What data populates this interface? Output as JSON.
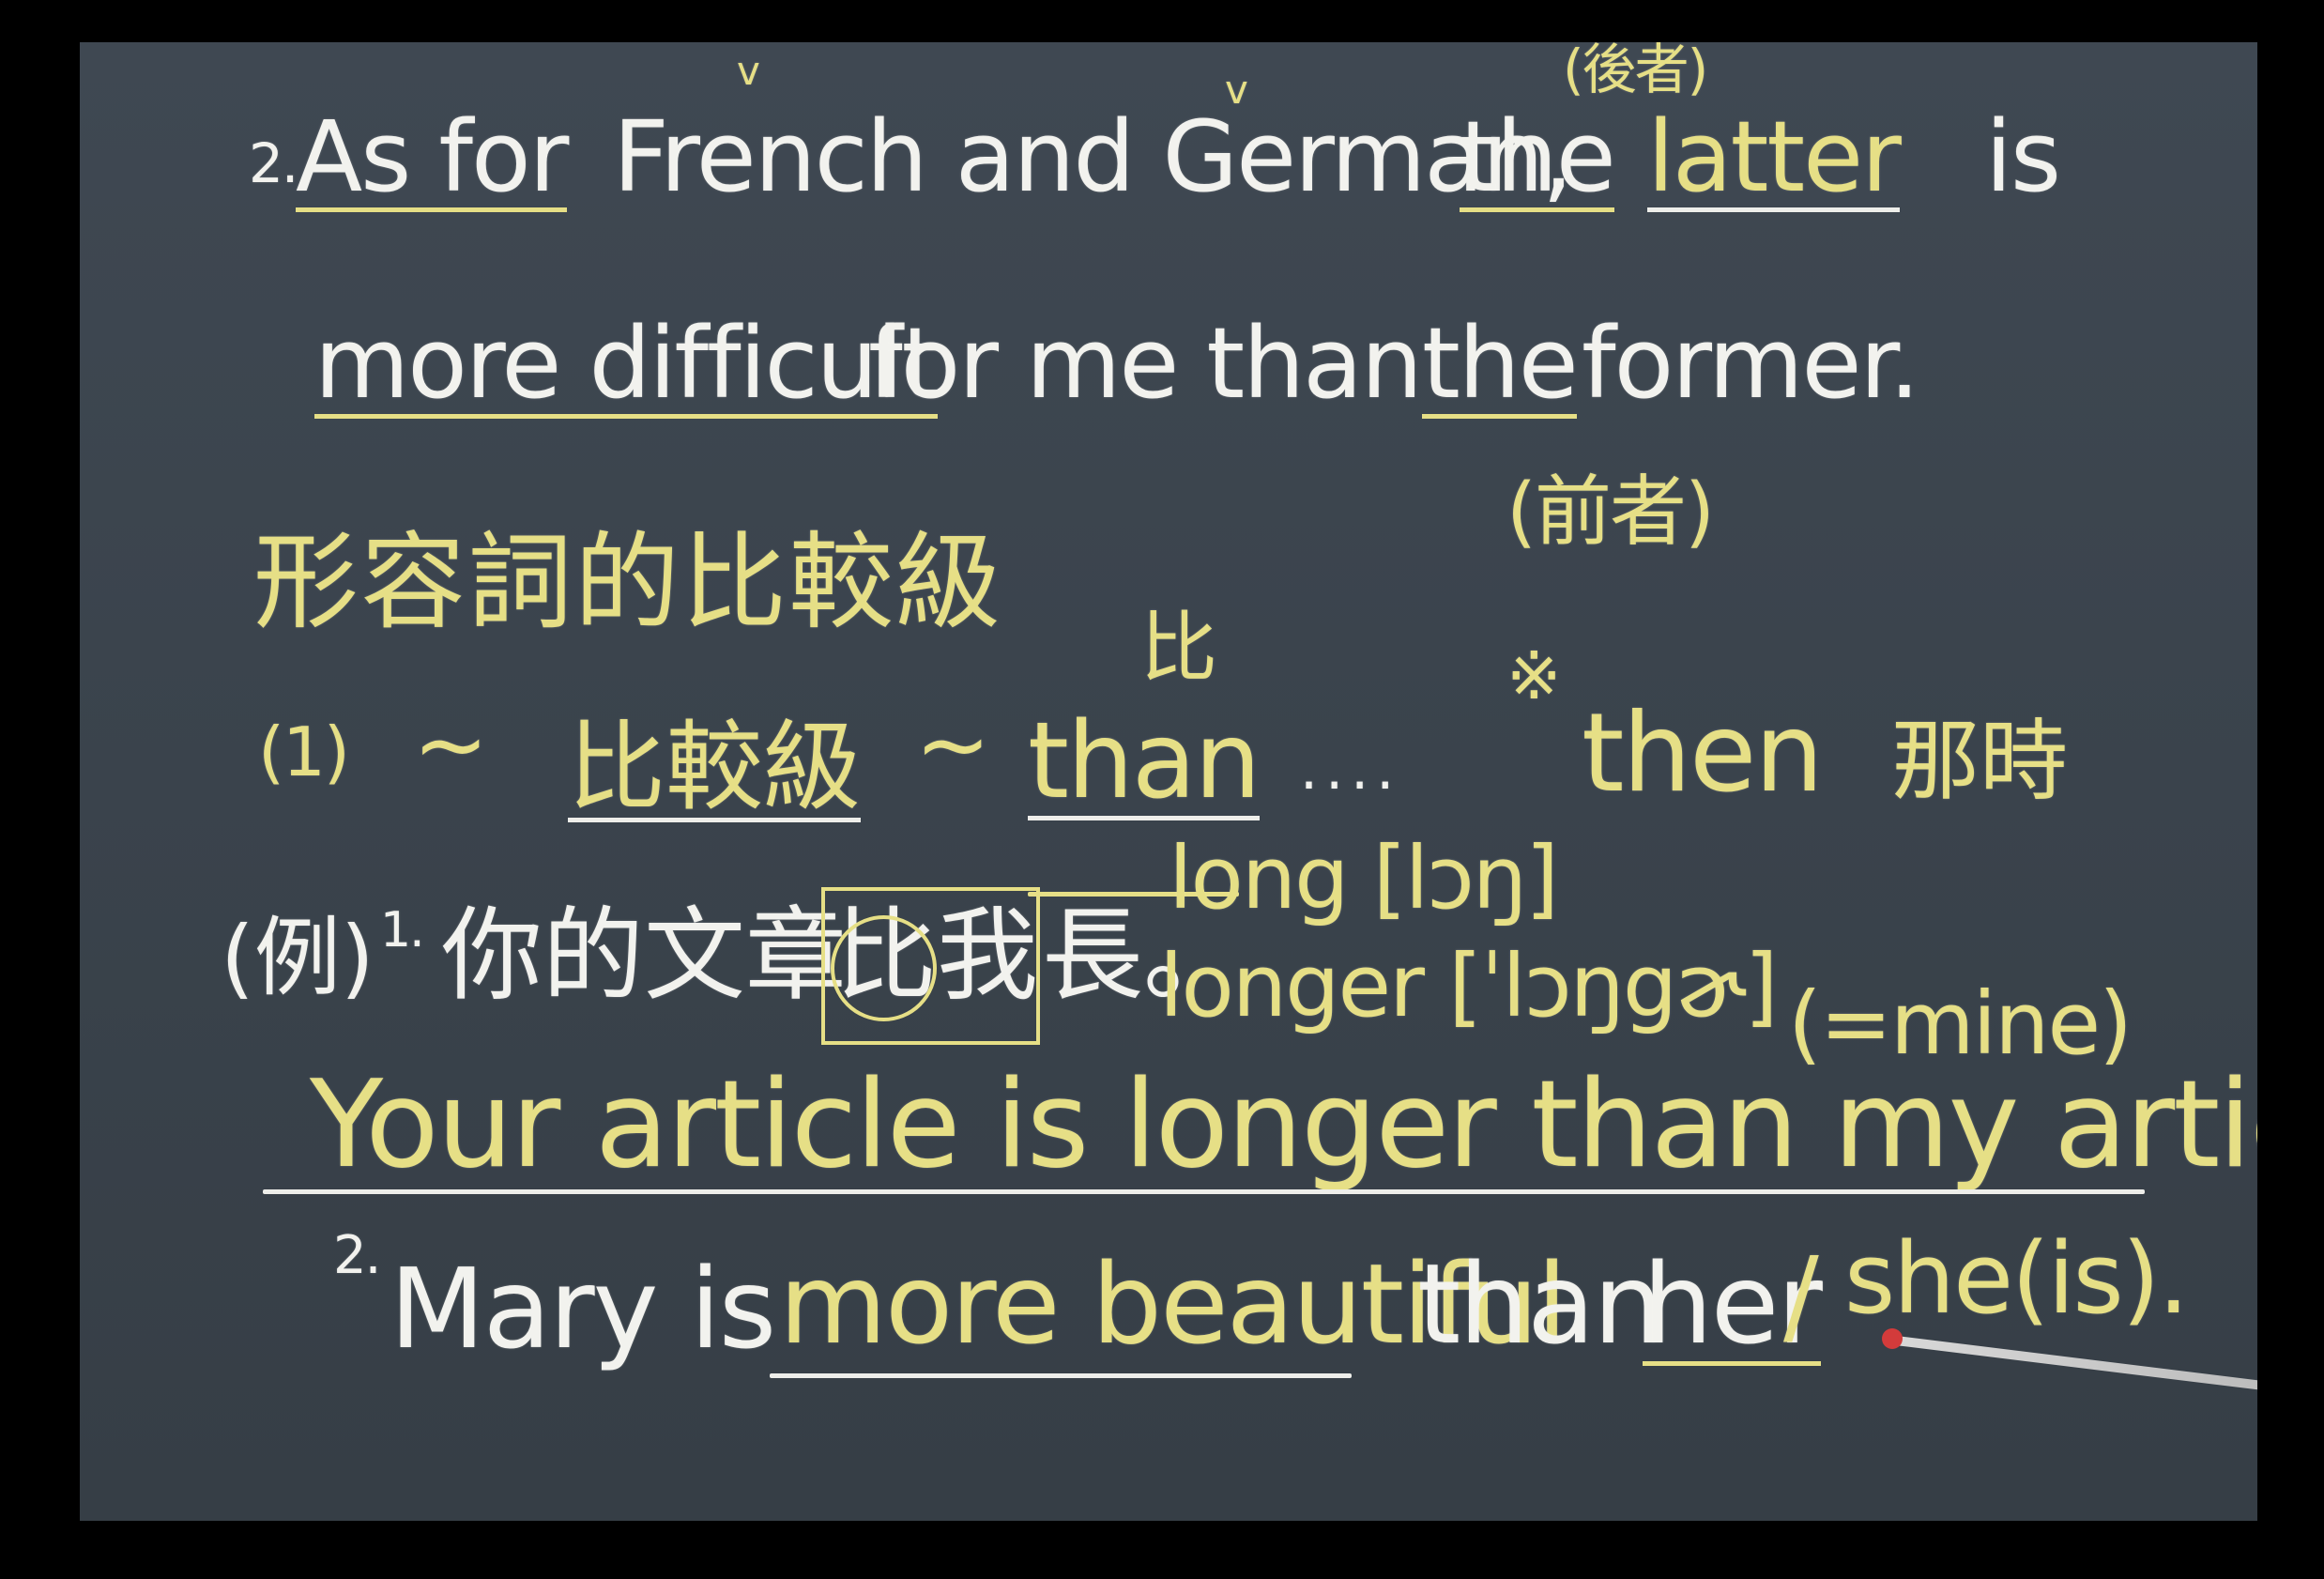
{
  "board": {
    "line1": {
      "num": "2.",
      "as_for": "As for",
      "middle": "French and German,",
      "the": "the",
      "latter": "latter",
      "is": "is",
      "latter_gloss": "(後者)",
      "check_marks": [
        "v",
        "v"
      ]
    },
    "line2": {
      "more_difficult": "more difficult",
      "rest": "for me than",
      "the": "the",
      "former": "former.",
      "former_gloss": "(前者)"
    },
    "heading": "形容詞的比較級",
    "bi_gloss": "比",
    "rule": {
      "num": "(1)",
      "dash1": "~",
      "comparative": "比較級",
      "dash2": "~",
      "than": "than",
      "dots": "....",
      "star": "※",
      "then": "then",
      "then_meaning": "那時"
    },
    "example1": {
      "label": "(例)",
      "num": "1.",
      "chinese_pre": "你的文章",
      "chinese_boxed": "比我",
      "chinese_post": "長。",
      "long": "long [lɔŋ]",
      "longer": "longer [ˈlɔŋgɚ]",
      "english": "Your article is longer than my article.",
      "mine_gloss": "(=mine)"
    },
    "example2": {
      "num": "2.",
      "mary_is": "Mary is",
      "more_beautiful": "more beautiful",
      "than": "than",
      "her": "her",
      "slash": "/",
      "she_is": "she(is)."
    }
  }
}
